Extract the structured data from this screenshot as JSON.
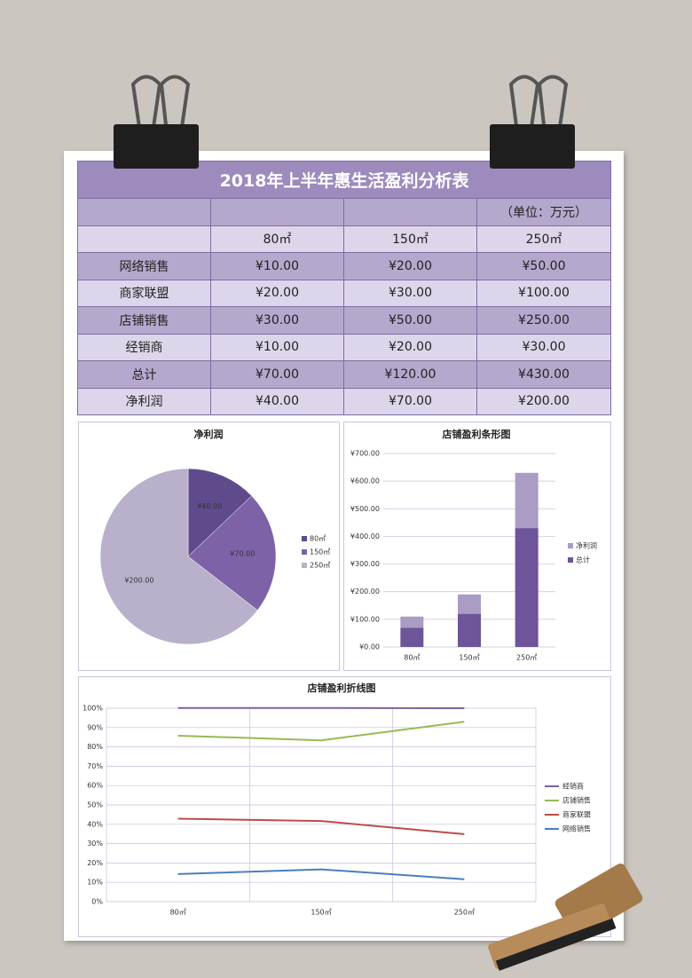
{
  "table": {
    "title": "2018年上半年惠生活盈利分析表",
    "unit": "（单位：万元）",
    "header": [
      "80㎡",
      "150㎡",
      "250㎡"
    ],
    "rows": [
      [
        "网络销售",
        "¥10.00",
        "¥20.00",
        "¥50.00"
      ],
      [
        "商家联盟",
        "¥20.00",
        "¥30.00",
        "¥100.00"
      ],
      [
        "店铺销售",
        "¥30.00",
        "¥50.00",
        "¥250.00"
      ],
      [
        "经销商",
        "¥10.00",
        "¥20.00",
        "¥30.00"
      ],
      [
        "总计",
        "¥70.00",
        "¥120.00",
        "¥430.00"
      ],
      [
        "净利润",
        "¥40.00",
        "¥70.00",
        "¥200.00"
      ]
    ]
  },
  "chart_data": [
    {
      "type": "pie",
      "title": "净利润",
      "categories": [
        "80㎡",
        "150㎡",
        "250㎡"
      ],
      "values": [
        40,
        70,
        200
      ],
      "value_labels": [
        "¥40.00",
        "¥70.00",
        "¥200.00"
      ],
      "colors": [
        "#5f4a8b",
        "#7d62a8",
        "#b9b0cc"
      ],
      "legend": "right"
    },
    {
      "type": "bar",
      "stacked": true,
      "title": "店铺盈利条形图",
      "categories": [
        "80㎡",
        "150㎡",
        "250㎡"
      ],
      "series": [
        {
          "name": "总计",
          "color": "#6e5499",
          "values": [
            70,
            120,
            430
          ]
        },
        {
          "name": "净利润",
          "color": "#aa9cc4",
          "values": [
            40,
            70,
            200
          ]
        }
      ],
      "ylim": [
        0,
        700
      ],
      "yticks": [
        {
          "value": 0,
          "label": "¥0.00"
        },
        {
          "value": 100,
          "label": "¥100.00"
        },
        {
          "value": 200,
          "label": "¥200.00"
        },
        {
          "value": 300,
          "label": "¥300.00"
        },
        {
          "value": 400,
          "label": "¥400.00"
        },
        {
          "value": 500,
          "label": "¥500.00"
        },
        {
          "value": 600,
          "label": "¥600.00"
        },
        {
          "value": 700,
          "label": "¥700.00"
        }
      ],
      "grid": true,
      "legend": "right"
    },
    {
      "type": "line",
      "stacked": true,
      "title": "店铺盈利折线图",
      "categories": [
        "80㎡",
        "150㎡",
        "250㎡"
      ],
      "series": [
        {
          "name": "网络销售",
          "color": "#4a7ebb",
          "values": [
            14.3,
            16.7,
            11.6
          ]
        },
        {
          "name": "商家联盟",
          "color": "#be4b48",
          "values": [
            28.6,
            25.0,
            23.3
          ]
        },
        {
          "name": "店铺销售",
          "color": "#98b954",
          "values": [
            42.9,
            41.7,
            58.1
          ]
        },
        {
          "name": "经销商",
          "color": "#7d60a0",
          "values": [
            14.3,
            16.7,
            7.0
          ]
        }
      ],
      "ylim": [
        0,
        100
      ],
      "yticks": [
        {
          "value": 0,
          "label": "0%"
        },
        {
          "value": 10,
          "label": "10%"
        },
        {
          "value": 20,
          "label": "20%"
        },
        {
          "value": 30,
          "label": "30%"
        },
        {
          "value": 40,
          "label": "40%"
        },
        {
          "value": 50,
          "label": "50%"
        },
        {
          "value": 60,
          "label": "60%"
        },
        {
          "value": 70,
          "label": "70%"
        },
        {
          "value": 80,
          "label": "80%"
        },
        {
          "value": 90,
          "label": "90%"
        },
        {
          "value": 100,
          "label": "100%"
        }
      ],
      "grid": true,
      "legend": "right"
    }
  ]
}
